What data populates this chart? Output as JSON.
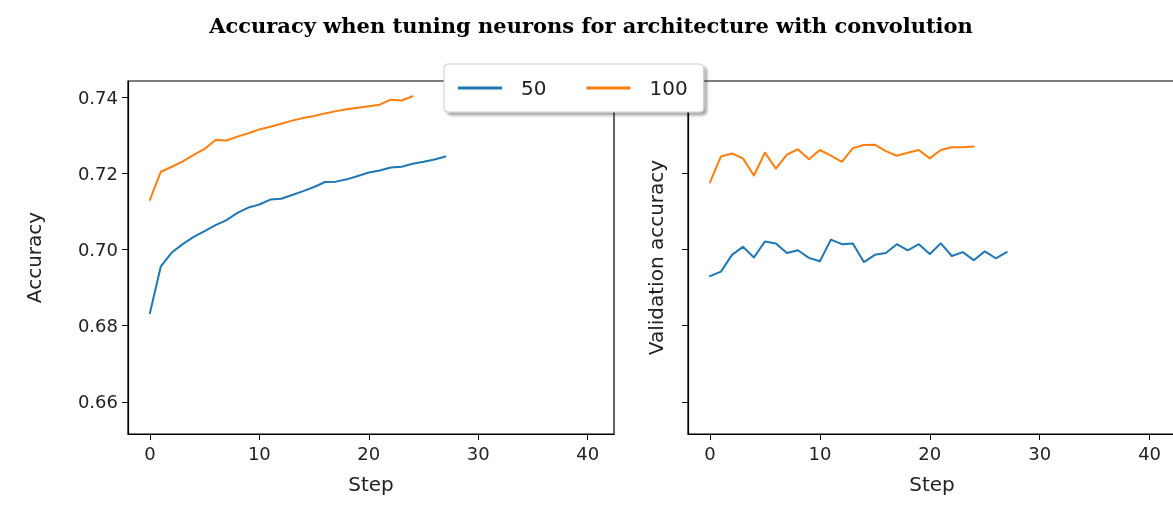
{
  "chart_data": [
    {
      "type": "line",
      "title": "Accuracy when tuning neurons for architecture with convolution",
      "xlabel": "Step",
      "ylabel": "Accuracy",
      "legend": "top",
      "grid": false,
      "xlim": [
        -2,
        42.4
      ],
      "xticks": [
        0,
        10,
        20,
        30,
        40
      ],
      "ylim": [
        0.6516,
        0.7442
      ],
      "yticks": [
        0.66,
        0.68,
        {
          "value": 0.7,
          "label": "0.70"
        },
        0.72,
        0.74
      ],
      "series": [
        {
          "name": "50",
          "color": "#1f77b4",
          "x": [
            0,
            1,
            2,
            3,
            4,
            5,
            6,
            7,
            8,
            9,
            10,
            11,
            12,
            13,
            14,
            15,
            16,
            17,
            18,
            19,
            20,
            21,
            22,
            23,
            24,
            25,
            26,
            27
          ],
          "values": [
            0.6833,
            0.6956,
            0.6992,
            0.7014,
            0.7033,
            0.7048,
            0.7064,
            0.7077,
            0.7096,
            0.711,
            0.7118,
            0.7131,
            0.7133,
            0.7143,
            0.7153,
            0.7164,
            0.7177,
            0.7178,
            0.7184,
            0.7193,
            0.7202,
            0.7207,
            0.7215,
            0.7217,
            0.7225,
            0.723,
            0.7236,
            0.7244
          ]
        },
        {
          "name": "100",
          "color": "#ff7f0e",
          "x": [
            0,
            1,
            2,
            3,
            4,
            5,
            6,
            7,
            8,
            9,
            10,
            11,
            12,
            13,
            14,
            15,
            16,
            17,
            18,
            19,
            20,
            21,
            22,
            23,
            24
          ],
          "values": [
            0.713,
            0.7204,
            0.7217,
            0.7231,
            0.7248,
            0.7264,
            0.7287,
            0.7286,
            0.7296,
            0.7305,
            0.7315,
            0.7322,
            0.733,
            0.7338,
            0.7345,
            0.735,
            0.7357,
            0.7363,
            0.7368,
            0.7372,
            0.7376,
            0.738,
            0.7393,
            0.7391,
            0.7402
          ]
        }
      ]
    },
    {
      "type": "line",
      "xlabel": "Step",
      "ylabel": "Validation accuracy",
      "grid": false,
      "tick_labels": "x",
      "xlim": [
        -2,
        42.4
      ],
      "xticks": [
        0,
        10,
        20,
        30,
        40
      ],
      "ylim": [
        0.6516,
        0.7442
      ],
      "yticks": [
        0.66,
        0.68,
        0.7,
        0.72,
        0.74
      ],
      "series": [
        {
          "name": "50",
          "color": "#1f77b4",
          "x": [
            0,
            1,
            2,
            3,
            4,
            5,
            6,
            7,
            8,
            9,
            10,
            11,
            12,
            13,
            14,
            15,
            16,
            17,
            18,
            19,
            20,
            21,
            22,
            23,
            24,
            25,
            26,
            27
          ],
          "values": [
            0.693,
            0.6942,
            0.6986,
            0.7007,
            0.6979,
            0.7021,
            0.7016,
            0.6991,
            0.6998,
            0.6978,
            0.6969,
            0.7026,
            0.7014,
            0.7016,
            0.6967,
            0.6986,
            0.6991,
            0.7014,
            0.6998,
            0.7014,
            0.6988,
            0.7016,
            0.6983,
            0.6993,
            0.6972,
            0.6995,
            0.6977,
            0.6993
          ]
        },
        {
          "name": "100",
          "color": "#ff7f0e",
          "x": [
            0,
            1,
            2,
            3,
            4,
            5,
            6,
            7,
            8,
            9,
            10,
            11,
            12,
            13,
            14,
            15,
            16,
            17,
            18,
            19,
            20,
            21,
            22,
            23,
            24
          ],
          "values": [
            0.7176,
            0.7244,
            0.7252,
            0.7239,
            0.7194,
            0.7254,
            0.7212,
            0.7249,
            0.7263,
            0.7237,
            0.7261,
            0.7246,
            0.723,
            0.7266,
            0.7274,
            0.7275,
            0.7258,
            0.7246,
            0.7254,
            0.7261,
            0.7239,
            0.7261,
            0.7268,
            0.7268,
            0.727
          ]
        }
      ]
    }
  ]
}
